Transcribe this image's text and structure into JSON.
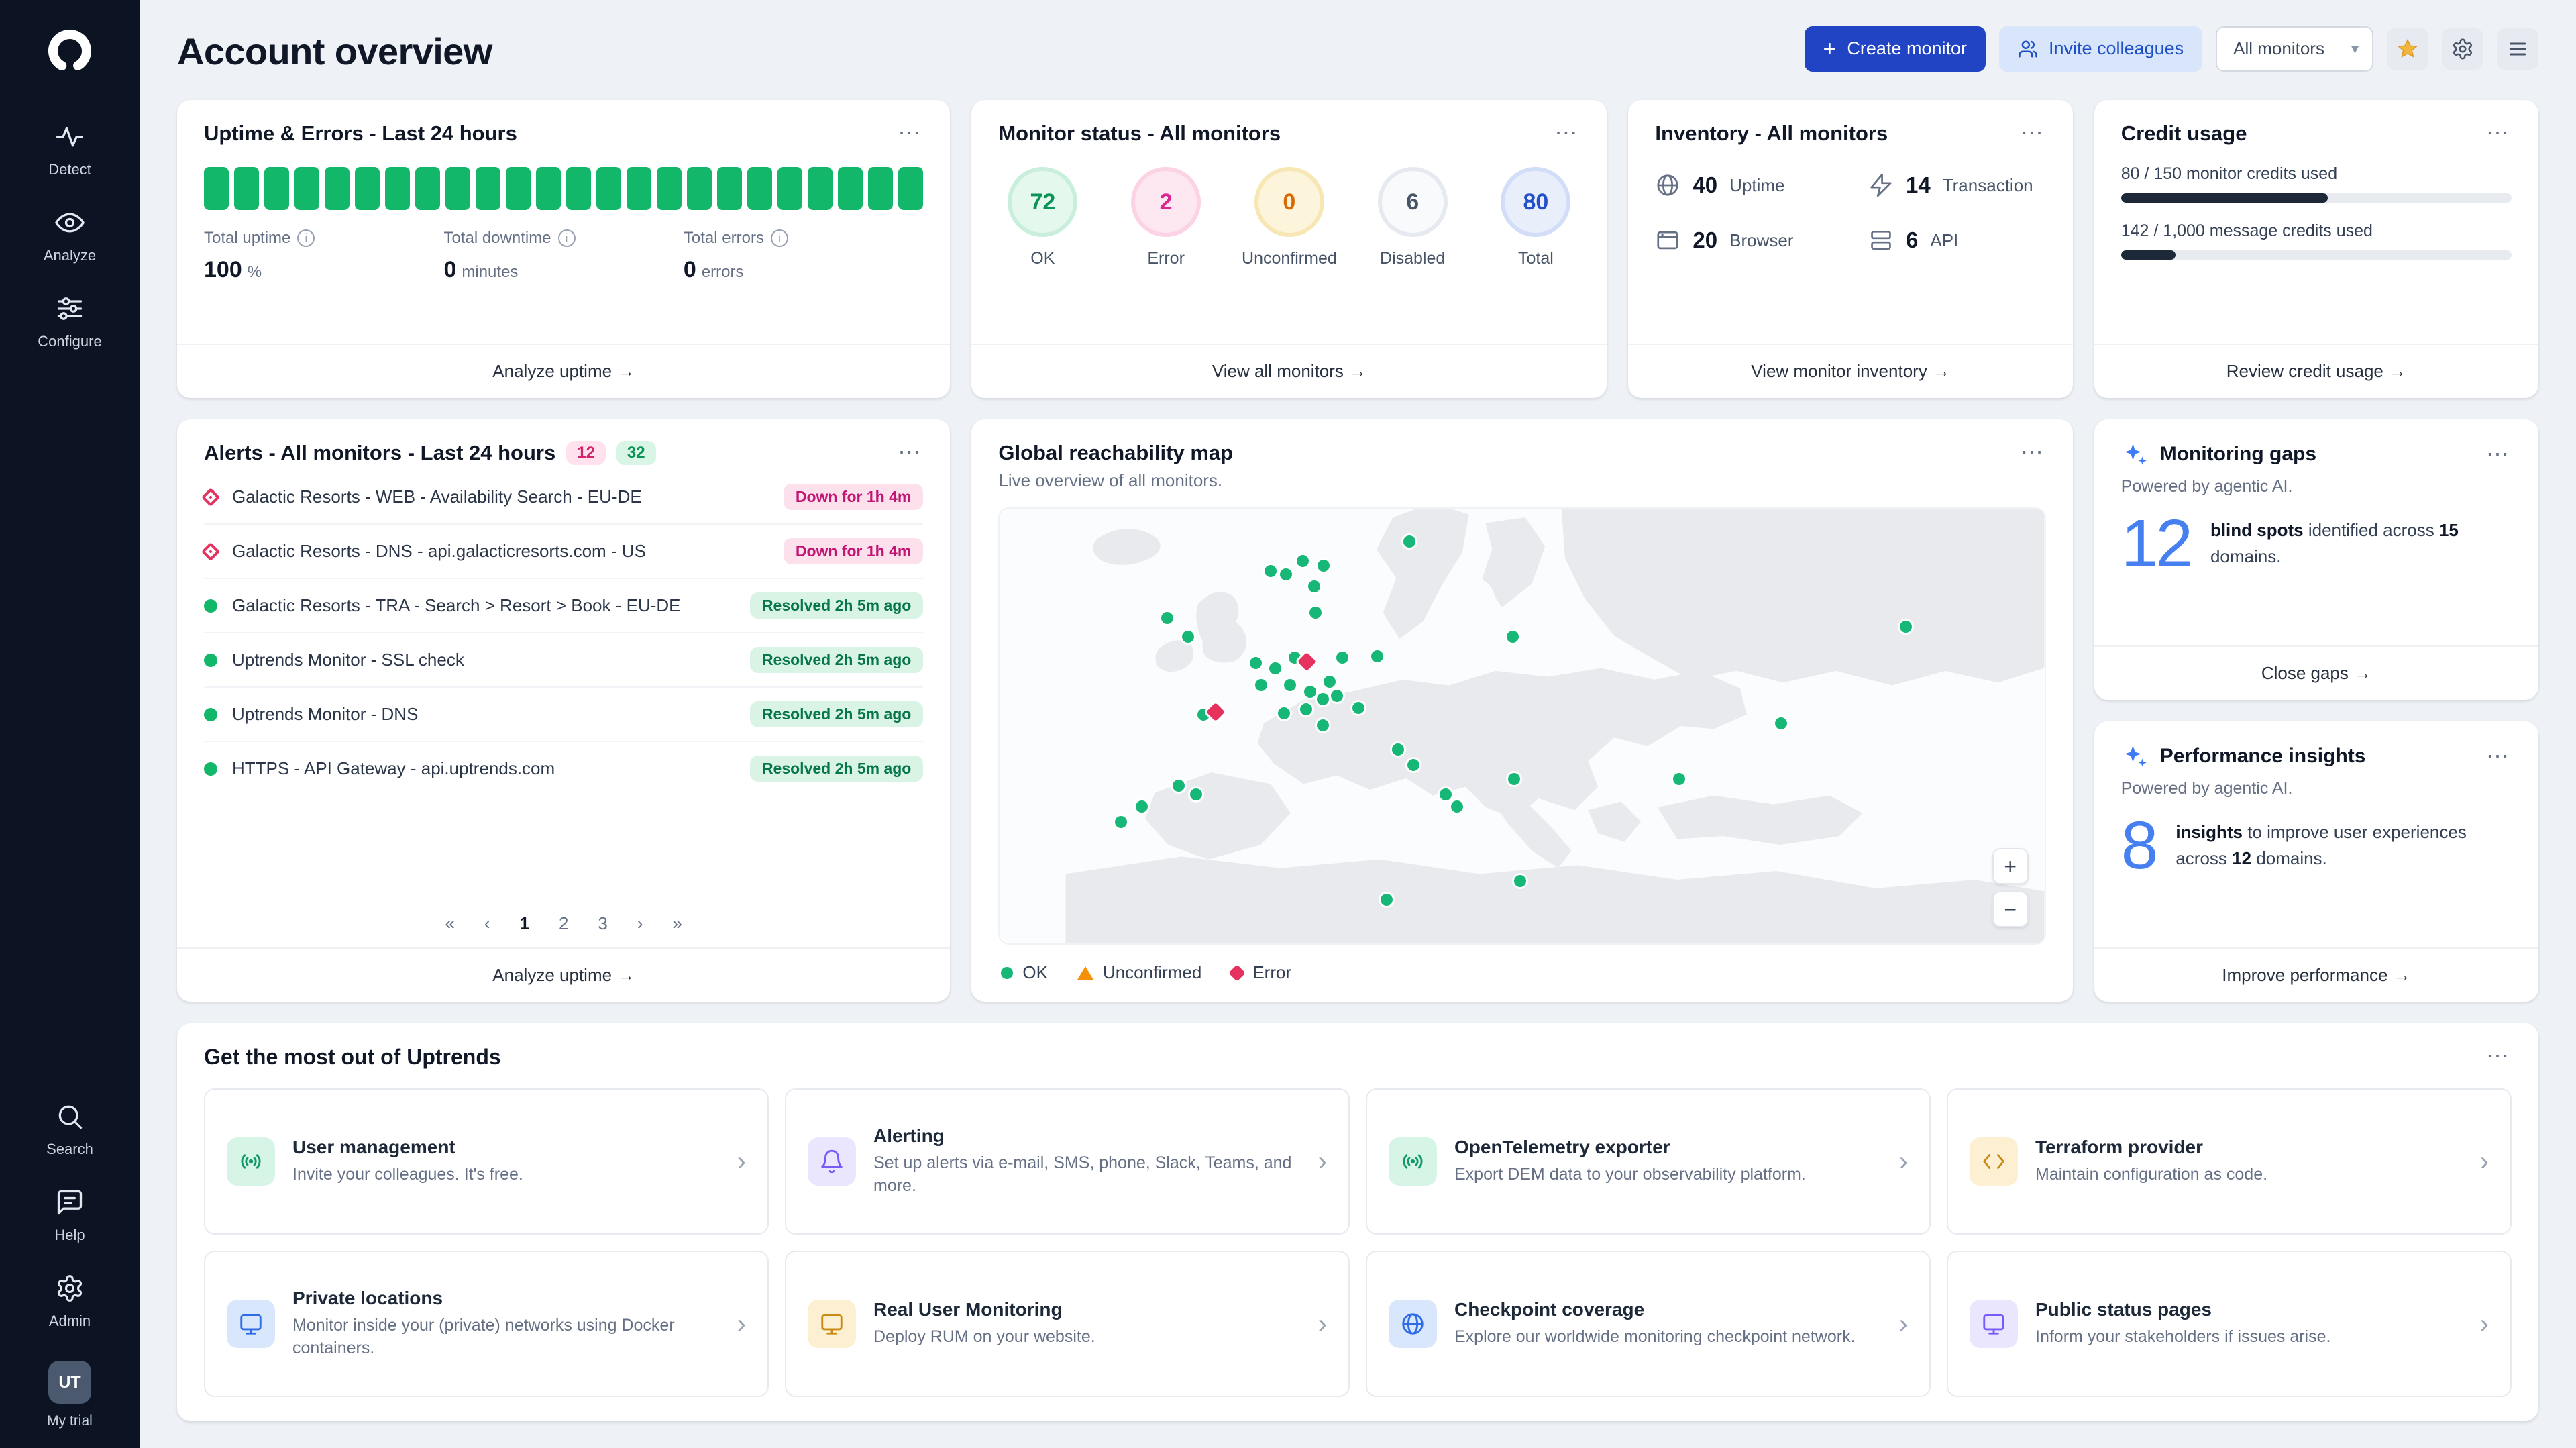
{
  "colors": {
    "accent": "#2144c4",
    "green": "#12b76a",
    "red": "#e5325f",
    "amber": "#f79009",
    "ai_blue": "#4680f0",
    "sidebar": "#0c1424"
  },
  "icons": {
    "ellipsis": "⋯",
    "arrow": "→",
    "chevron_down": "▾",
    "chevron_right": "›",
    "plus": "+",
    "info": "i",
    "zoom_in": "+",
    "zoom_out": "−"
  },
  "sidebar": {
    "items": [
      {
        "label": "Detect"
      },
      {
        "label": "Analyze"
      },
      {
        "label": "Configure"
      }
    ],
    "bottom_items": [
      {
        "label": "Search"
      },
      {
        "label": "Help"
      },
      {
        "label": "Admin"
      }
    ],
    "avatar": {
      "initials": "UT",
      "label": "My trial"
    }
  },
  "header": {
    "title": "Account overview",
    "create_monitor_label": "Create monitor",
    "invite_colleagues_label": "Invite colleagues",
    "monitor_filter_value": "All monitors"
  },
  "uptime_card": {
    "title": "Uptime & Errors - Last 24 hours",
    "bars": [
      100,
      100,
      100,
      100,
      100,
      100,
      100,
      100,
      100,
      100,
      100,
      100,
      100,
      100,
      100,
      100,
      100,
      100,
      100,
      100,
      100,
      100,
      100,
      100
    ],
    "stats": [
      {
        "label": "Total uptime",
        "value": "100",
        "unit": "%"
      },
      {
        "label": "Total downtime",
        "value": "0",
        "unit": "minutes"
      },
      {
        "label": "Total errors",
        "value": "0",
        "unit": "errors"
      }
    ],
    "footer_link": "Analyze uptime"
  },
  "status_card": {
    "title": "Monitor status - All monitors",
    "stats": [
      {
        "value": "72",
        "label": "OK"
      },
      {
        "value": "2",
        "label": "Error"
      },
      {
        "value": "0",
        "label": "Unconfirmed"
      },
      {
        "value": "6",
        "label": "Disabled"
      },
      {
        "value": "80",
        "label": "Total"
      }
    ],
    "footer_link": "View all monitors"
  },
  "inventory_card": {
    "title": "Inventory - All monitors",
    "items": [
      {
        "value": "40",
        "label": "Uptime"
      },
      {
        "value": "14",
        "label": "Transaction"
      },
      {
        "value": "20",
        "label": "Browser"
      },
      {
        "value": "6",
        "label": "API"
      }
    ],
    "footer_link": "View monitor inventory"
  },
  "credit_card": {
    "title": "Credit usage",
    "rows": [
      {
        "label": "80 / 150 monitor credits used",
        "percent": 53
      },
      {
        "label": "142 / 1,000 message credits used",
        "percent": 14
      }
    ],
    "footer_link": "Review credit usage"
  },
  "alerts_card": {
    "title": "Alerts - All monitors - Last 24 hours",
    "badges": [
      {
        "value": "12"
      },
      {
        "value": "32"
      }
    ],
    "items": [
      {
        "name": "Galactic Resorts - WEB - Availability Search - EU-DE",
        "status": "Down for 1h 4m",
        "type": "error"
      },
      {
        "name": "Galactic Resorts - DNS - api.galacticresorts.com - US",
        "status": "Down for 1h 4m",
        "type": "error"
      },
      {
        "name": "Galactic Resorts - TRA - Search > Resort > Book - EU-DE",
        "status": "Resolved 2h 5m ago",
        "type": "ok"
      },
      {
        "name": "Uptrends Monitor - SSL check",
        "status": "Resolved 2h 5m ago",
        "type": "ok"
      },
      {
        "name": "Uptrends Monitor - DNS",
        "status": "Resolved 2h 5m ago",
        "type": "ok"
      },
      {
        "name": "HTTPS - API Gateway - api.uptrends.com",
        "status": "Resolved 2h 5m ago",
        "type": "ok"
      }
    ],
    "pagination": {
      "first": "«",
      "prev": "‹",
      "pages": [
        "1",
        "2",
        "3"
      ],
      "next": "›",
      "last": "»"
    },
    "footer_link": "Analyze uptime"
  },
  "map_card": {
    "title": "Global reachability map",
    "subtitle": "Live overview of all monitors.",
    "legend": [
      {
        "label": "OK"
      },
      {
        "label": "Unconfirmed"
      },
      {
        "label": "Error"
      }
    ],
    "markers": [
      {
        "x": 39.2,
        "y": 7.6,
        "type": "ok"
      },
      {
        "x": 25.9,
        "y": 14.3,
        "type": "ok"
      },
      {
        "x": 29.0,
        "y": 12.0,
        "type": "ok"
      },
      {
        "x": 27.4,
        "y": 15.1,
        "type": "ok"
      },
      {
        "x": 30.1,
        "y": 17.9,
        "type": "ok"
      },
      {
        "x": 31.0,
        "y": 13.1,
        "type": "ok"
      },
      {
        "x": 16.0,
        "y": 25.1,
        "type": "ok"
      },
      {
        "x": 18.0,
        "y": 29.5,
        "type": "ok"
      },
      {
        "x": 30.2,
        "y": 23.9,
        "type": "ok"
      },
      {
        "x": 49.1,
        "y": 29.5,
        "type": "ok"
      },
      {
        "x": 86.7,
        "y": 27.1,
        "type": "ok"
      },
      {
        "x": 24.5,
        "y": 35.5,
        "type": "ok"
      },
      {
        "x": 26.4,
        "y": 36.7,
        "type": "ok"
      },
      {
        "x": 28.2,
        "y": 34.3,
        "type": "ok"
      },
      {
        "x": 32.8,
        "y": 34.3,
        "type": "ok"
      },
      {
        "x": 36.1,
        "y": 33.9,
        "type": "ok"
      },
      {
        "x": 31.6,
        "y": 39.8,
        "type": "ok"
      },
      {
        "x": 27.8,
        "y": 40.6,
        "type": "ok"
      },
      {
        "x": 25.0,
        "y": 40.6,
        "type": "ok"
      },
      {
        "x": 29.7,
        "y": 42.2,
        "type": "ok"
      },
      {
        "x": 30.9,
        "y": 43.8,
        "type": "ok"
      },
      {
        "x": 32.3,
        "y": 43.0,
        "type": "ok"
      },
      {
        "x": 34.3,
        "y": 45.8,
        "type": "ok"
      },
      {
        "x": 29.3,
        "y": 46.2,
        "type": "ok"
      },
      {
        "x": 27.2,
        "y": 47.0,
        "type": "ok"
      },
      {
        "x": 19.5,
        "y": 47.4,
        "type": "ok"
      },
      {
        "x": 30.9,
        "y": 49.8,
        "type": "ok"
      },
      {
        "x": 38.1,
        "y": 55.4,
        "type": "ok"
      },
      {
        "x": 39.6,
        "y": 59.0,
        "type": "ok"
      },
      {
        "x": 74.8,
        "y": 49.4,
        "type": "ok"
      },
      {
        "x": 49.2,
        "y": 62.2,
        "type": "ok"
      },
      {
        "x": 65.0,
        "y": 62.2,
        "type": "ok"
      },
      {
        "x": 43.8,
        "y": 68.5,
        "type": "ok"
      },
      {
        "x": 42.7,
        "y": 65.7,
        "type": "ok"
      },
      {
        "x": 17.1,
        "y": 63.7,
        "type": "ok"
      },
      {
        "x": 18.8,
        "y": 65.7,
        "type": "ok"
      },
      {
        "x": 11.6,
        "y": 72.1,
        "type": "ok"
      },
      {
        "x": 13.6,
        "y": 68.5,
        "type": "ok"
      },
      {
        "x": 37.0,
        "y": 90.0,
        "type": "ok"
      },
      {
        "x": 49.8,
        "y": 85.7,
        "type": "ok"
      },
      {
        "x": 29.3,
        "y": 35.1,
        "type": "error"
      },
      {
        "x": 20.6,
        "y": 46.6,
        "type": "error"
      }
    ]
  },
  "gaps_card": {
    "title": "Monitoring gaps",
    "powered": "Powered by agentic AI.",
    "number": "12",
    "s1": "blind spots",
    "s2": " identified across ",
    "s3": "15",
    "s4": " domains.",
    "footer_link": "Close gaps"
  },
  "insights_card": {
    "title": "Performance insights",
    "powered": "Powered by agentic AI.",
    "number": "8",
    "s1": "insights",
    "s2": " to improve user experiences across ",
    "s3": "12",
    "s4": " domains.",
    "footer_link": "Improve performance"
  },
  "promo": {
    "heading": "Get the most out of Uptrends",
    "tiles": [
      {
        "title": "User management",
        "desc": "Invite your colleagues. It's free."
      },
      {
        "title": "Alerting",
        "desc": "Set up alerts via e-mail, SMS, phone, Slack, Teams, and more."
      },
      {
        "title": "OpenTelemetry exporter",
        "desc": "Export DEM data to your observability platform."
      },
      {
        "title": "Terraform provider",
        "desc": "Maintain configuration as code."
      },
      {
        "title": "Private locations",
        "desc": "Monitor inside your (private) networks using Docker containers."
      },
      {
        "title": "Real User Monitoring",
        "desc": "Deploy RUM on your website."
      },
      {
        "title": "Checkpoint coverage",
        "desc": "Explore our worldwide monitoring checkpoint network."
      },
      {
        "title": "Public status pages",
        "desc": "Inform your stakeholders if issues arise."
      }
    ]
  }
}
